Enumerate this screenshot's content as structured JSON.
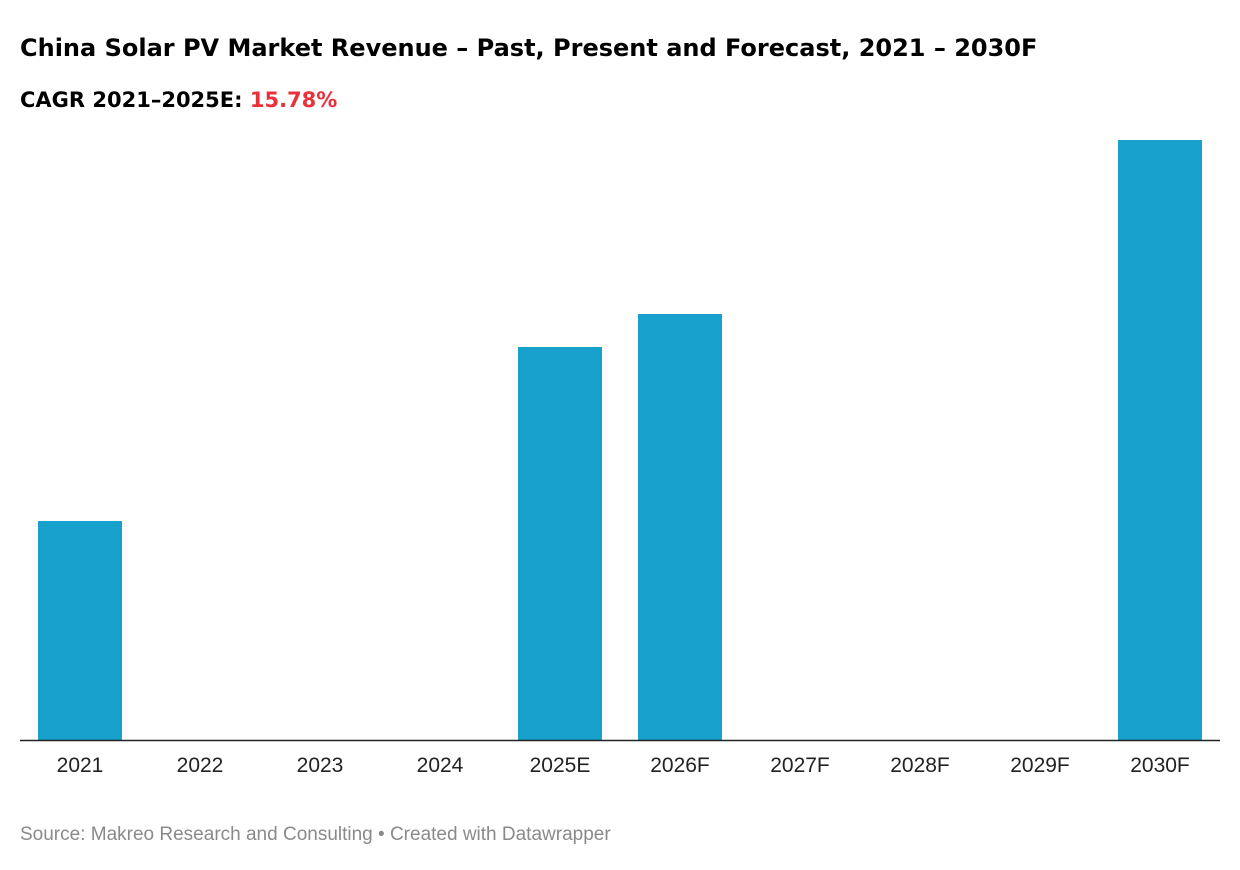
{
  "chart_data": {
    "type": "bar",
    "title": "China Solar PV Market Revenue – Past, Present and Forecast, 2021 – 2030F",
    "subtitle_prefix": "CAGR 2021–2025E:",
    "subtitle_value": "15.78%",
    "categories": [
      "2021",
      "2022",
      "2023",
      "2024",
      "2025E",
      "2026F",
      "2027F",
      "2028F",
      "2029F",
      "2030F"
    ],
    "values": [
      2.19,
      null,
      null,
      null,
      3.93,
      4.26,
      null,
      null,
      null,
      6.0
    ],
    "xlabel": "",
    "ylabel": "",
    "ylim": [
      0,
      6
    ],
    "grid": false,
    "bar_color": "#18a1cd",
    "highlight_color": "#e8313a"
  },
  "footer": {
    "source": "Source: Makreo Research and Consulting • Created with Datawrapper"
  }
}
